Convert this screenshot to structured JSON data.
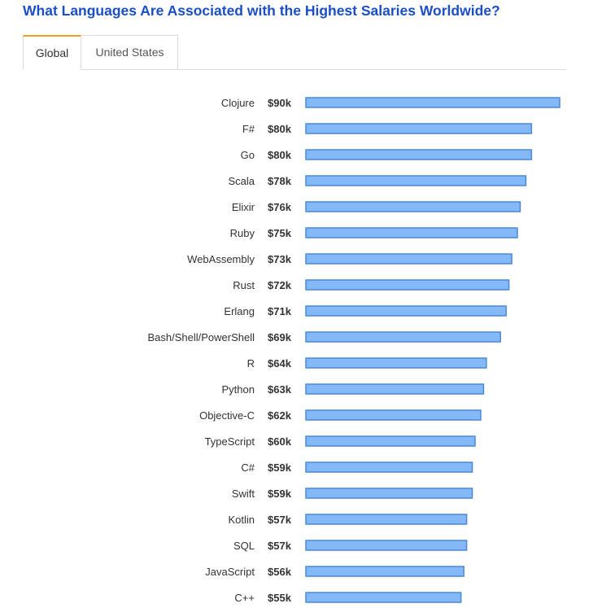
{
  "title": "What Languages Are Associated with the Highest Salaries Worldwide?",
  "tabs": [
    {
      "label": "Global",
      "active": true
    },
    {
      "label": "United States",
      "active": false
    }
  ],
  "colors": {
    "bar_fill": "#84b8f8",
    "bar_stroke": "#4a8ad4",
    "title": "#1a4fc7",
    "active_tab": "#f0a020"
  },
  "chart_data": {
    "type": "bar",
    "orientation": "horizontal",
    "categories": [
      "Clojure",
      "F#",
      "Go",
      "Scala",
      "Elixir",
      "Ruby",
      "WebAssembly",
      "Rust",
      "Erlang",
      "Bash/Shell/PowerShell",
      "R",
      "Python",
      "Objective-C",
      "TypeScript",
      "C#",
      "Swift",
      "Kotlin",
      "SQL",
      "JavaScript",
      "C++"
    ],
    "values": [
      90,
      80,
      80,
      78,
      76,
      75,
      73,
      72,
      71,
      69,
      64,
      63,
      62,
      60,
      59,
      59,
      57,
      57,
      56,
      55
    ],
    "value_labels": [
      "$90k",
      "$80k",
      "$80k",
      "$78k",
      "$76k",
      "$75k",
      "$73k",
      "$72k",
      "$71k",
      "$69k",
      "$64k",
      "$63k",
      "$62k",
      "$60k",
      "$59k",
      "$59k",
      "$57k",
      "$57k",
      "$56k",
      "$55k"
    ],
    "unit": "thousand USD",
    "xlim": [
      0,
      90
    ]
  }
}
